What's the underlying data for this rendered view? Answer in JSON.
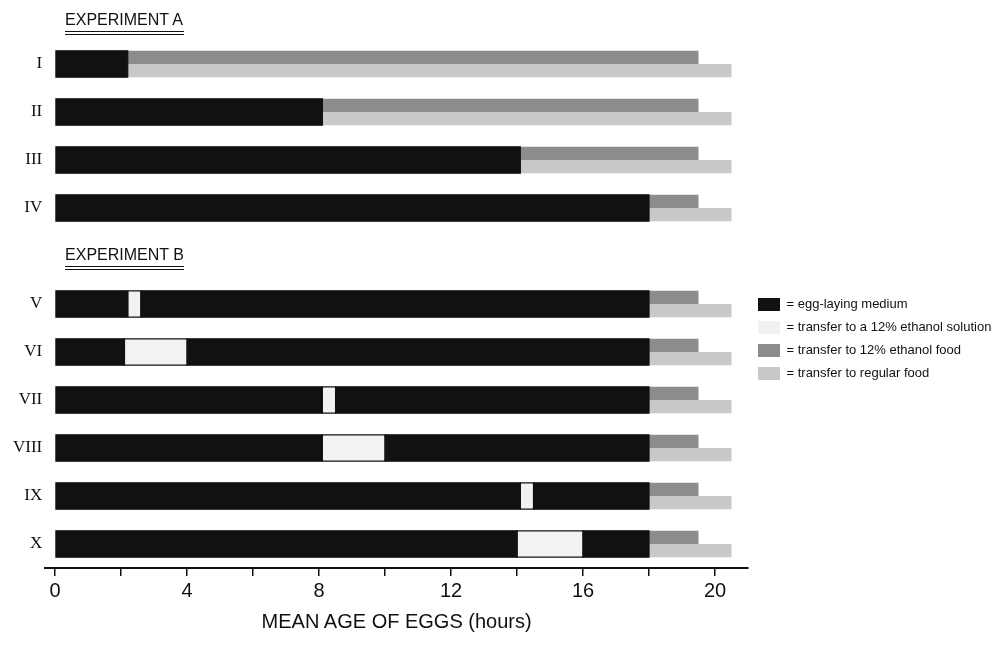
{
  "chart_data": {
    "type": "bar",
    "orientation": "horizontal",
    "xlabel": "MEAN AGE OF EGGS (hours)",
    "categories": [
      "I",
      "II",
      "III",
      "IV",
      null,
      "V",
      "VI",
      "VII",
      "VIII",
      "IX",
      "X"
    ],
    "xlim": [
      -0.3,
      21
    ],
    "xticks": [
      0,
      {
        "value": 2,
        "label": null
      },
      4,
      {
        "value": 6,
        "label": null
      },
      8,
      {
        "value": 10,
        "label": null
      },
      12,
      {
        "value": 14,
        "label": null
      },
      16,
      {
        "value": 18,
        "label": null
      },
      20
    ],
    "grid": false,
    "legend": "right",
    "annotations": [
      "EXPERIMENT A",
      "EXPERIMENT B"
    ],
    "series": [
      {
        "name": "= egg-laying medium",
        "color": "#111111",
        "base": [
          0,
          0,
          0,
          0,
          null,
          0,
          0,
          0,
          0,
          0,
          0
        ],
        "values": [
          2.2,
          8.1,
          14.1,
          18,
          null,
          2.2,
          2.1,
          8.1,
          8.1,
          14.1,
          14
        ]
      },
      {
        "name": "= transfer to a 12% ethanol solution",
        "color": "#f2f2f2",
        "base": [
          null,
          null,
          null,
          null,
          null,
          2.2,
          2.1,
          8.1,
          8.1,
          14.1,
          14
        ],
        "values": [
          null,
          null,
          null,
          null,
          null,
          0.4,
          1.9,
          0.4,
          1.9,
          0.4,
          2
        ]
      },
      {
        "color": "#111111",
        "base": [
          null,
          null,
          null,
          null,
          null,
          2.6,
          4,
          8.5,
          10,
          14.5,
          16
        ],
        "values": [
          null,
          null,
          null,
          null,
          null,
          15.4,
          14,
          9.5,
          8,
          3.5,
          2
        ]
      },
      {
        "name": "= transfer to 12% ethanol food",
        "color": "#8c8c8c",
        "base": [
          2.2,
          8.1,
          14.1,
          18,
          null,
          18,
          18,
          18,
          18,
          18,
          18
        ],
        "values": [
          17.3,
          11.4,
          5.4,
          1.5,
          null,
          1.5,
          1.5,
          1.5,
          1.5,
          1.5,
          1.5
        ]
      },
      {
        "name": "= transfer to regular food",
        "color": "#c8c8c8",
        "base": [
          2.2,
          8.1,
          14.1,
          18,
          null,
          18,
          18,
          18,
          18,
          18,
          18
        ],
        "values": [
          18.3,
          12.4,
          6.4,
          2.5,
          null,
          2.5,
          2.5,
          2.5,
          2.5,
          2.5,
          2.5
        ]
      }
    ]
  }
}
